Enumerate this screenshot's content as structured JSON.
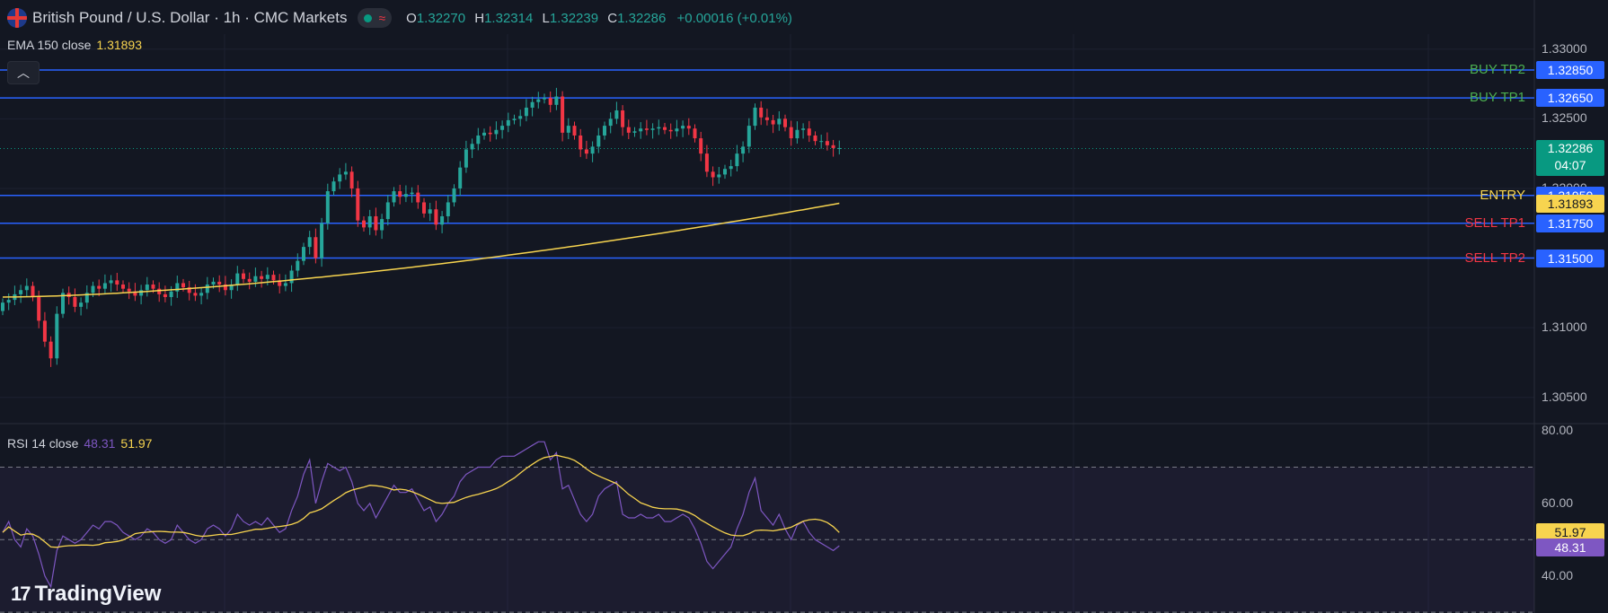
{
  "header": {
    "title": "British Pound / U.S. Dollar · 1h · CMC Markets",
    "flag_icon": "gbp-usd-flag-icon",
    "status_icon": "market-status-icon",
    "wave_icon": "wave-icon",
    "ohlc": {
      "o_label": "O",
      "o": "1.32270",
      "h_label": "H",
      "h": "1.32314",
      "l_label": "L",
      "l": "1.32239",
      "c_label": "C",
      "c": "1.32286",
      "change": "+0.00016 (+0.01%)"
    }
  },
  "ema_legend": {
    "label": "EMA 150 close",
    "value": "1.31893"
  },
  "rsi_legend": {
    "label": "RSI 14 close",
    "value": "48.31",
    "ma_value": "51.97"
  },
  "price_axis": {
    "ticks": [
      "1.33000",
      "1.32500",
      "1.32000",
      "1.31000",
      "1.30500"
    ],
    "current_price": "1.32286",
    "countdown": "04:07"
  },
  "rsi_axis": {
    "ticks": [
      "80.00",
      "60.00",
      "40.00"
    ],
    "rsi_value": "48.31",
    "ma_value": "51.97"
  },
  "levels": [
    {
      "label": "BUY TP2",
      "price": "1.32850",
      "value": 1.3285,
      "color": "#4caf50"
    },
    {
      "label": "BUY TP1",
      "price": "1.32650",
      "value": 1.3265,
      "color": "#4caf50"
    },
    {
      "label": "ENTRY",
      "price": "1.31950",
      "value": 1.3195,
      "color": "#f7d44f"
    },
    {
      "label": "SELL TP1",
      "price": "1.31750",
      "value": 1.3175,
      "color": "#f23645"
    },
    {
      "label": "SELL TP2",
      "price": "1.31500",
      "value": 1.315,
      "color": "#f23645"
    }
  ],
  "ema_tag": "1.31893",
  "colors": {
    "up": "#26a69a",
    "down": "#f23645",
    "ema": "#f7d44f",
    "rsi": "#7e57c2",
    "level_line": "#2962ff",
    "background": "#131722"
  },
  "logo": {
    "mark": "17",
    "text": "TradingView"
  },
  "chart_data": [
    {
      "type": "candlestick",
      "title": "British Pound / U.S. Dollar · 1h · CMC Markets",
      "ylim": [
        1.3035,
        1.3305
      ],
      "y_ticks": [
        1.33,
        1.325,
        1.32,
        1.31,
        1.305
      ],
      "hlines": [
        1.3285,
        1.3265,
        1.3195,
        1.3175,
        1.315
      ],
      "current_price": 1.32286,
      "close": [
        1.3118,
        1.312,
        1.3124,
        1.3127,
        1.313,
        1.3122,
        1.3105,
        1.309,
        1.3078,
        1.311,
        1.3125,
        1.3122,
        1.3115,
        1.3118,
        1.3125,
        1.313,
        1.3128,
        1.3132,
        1.3134,
        1.3131,
        1.3128,
        1.3126,
        1.3123,
        1.3127,
        1.3131,
        1.3128,
        1.3124,
        1.3122,
        1.3126,
        1.3132,
        1.3129,
        1.3125,
        1.3123,
        1.3125,
        1.3131,
        1.3133,
        1.3131,
        1.3127,
        1.3131,
        1.3139,
        1.3135,
        1.3133,
        1.3137,
        1.3135,
        1.3138,
        1.3134,
        1.313,
        1.3132,
        1.3141,
        1.3148,
        1.3158,
        1.3165,
        1.315,
        1.3175,
        1.3198,
        1.3205,
        1.321,
        1.3212,
        1.32,
        1.3177,
        1.3172,
        1.318,
        1.317,
        1.3178,
        1.319,
        1.3198,
        1.3194,
        1.3196,
        1.3197,
        1.319,
        1.3182,
        1.3185,
        1.3174,
        1.318,
        1.319,
        1.32,
        1.3215,
        1.3228,
        1.3232,
        1.3238,
        1.324,
        1.3239,
        1.3242,
        1.3245,
        1.3249,
        1.325,
        1.3252,
        1.3258,
        1.3262,
        1.3264,
        1.3265,
        1.326,
        1.3266,
        1.324,
        1.3245,
        1.3238,
        1.3228,
        1.3225,
        1.323,
        1.3238,
        1.3245,
        1.325,
        1.3256,
        1.3244,
        1.324,
        1.3241,
        1.3243,
        1.3242,
        1.3243,
        1.3244,
        1.3242,
        1.3241,
        1.3243,
        1.3245,
        1.3243,
        1.3236,
        1.3225,
        1.3212,
        1.3208,
        1.321,
        1.3214,
        1.3216,
        1.3225,
        1.323,
        1.3245,
        1.3258,
        1.3251,
        1.3249,
        1.3246,
        1.325,
        1.3244,
        1.3236,
        1.3242,
        1.3243,
        1.3238,
        1.3234,
        1.3234,
        1.3231,
        1.3229,
        1.3229
      ],
      "ema_150": {
        "start": 1.3122,
        "end": 1.31893
      }
    },
    {
      "type": "line",
      "title": "RSI 14 close",
      "ylim": [
        32.5,
        81
      ],
      "y_ticks": [
        80,
        60,
        40
      ],
      "bands": [
        70,
        50,
        30
      ],
      "series": [
        {
          "name": "RSI 14 close",
          "last": 48.31,
          "values": [
            52,
            55,
            50,
            48,
            53,
            51,
            46,
            40,
            37,
            47,
            51,
            50,
            49,
            50,
            52,
            54,
            53,
            55,
            55,
            54,
            52,
            51,
            50,
            51,
            53,
            52,
            50,
            49,
            50,
            54,
            52,
            50,
            49,
            50,
            53,
            54,
            53,
            51,
            53,
            57,
            55,
            54,
            55,
            54,
            56,
            54,
            52,
            53,
            58,
            62,
            68,
            72,
            60,
            66,
            71,
            70,
            69,
            70,
            66,
            60,
            58,
            60,
            56,
            59,
            62,
            65,
            63,
            63,
            64,
            61,
            58,
            59,
            55,
            57,
            60,
            62,
            66,
            68,
            69,
            70,
            70,
            70,
            72,
            73,
            73,
            73,
            74,
            75,
            76,
            77,
            77,
            72,
            74,
            64,
            65,
            61,
            57,
            55,
            57,
            62,
            64,
            65,
            66,
            57,
            56,
            56,
            57,
            56,
            56,
            57,
            55,
            55,
            56,
            57,
            56,
            53,
            49,
            44,
            42,
            44,
            46,
            48,
            53,
            57,
            63,
            67,
            58,
            56,
            54,
            57,
            53,
            50,
            54,
            55,
            52,
            50,
            49,
            48,
            47,
            48.31
          ]
        },
        {
          "name": "RSI-based MA",
          "last": 51.97
        }
      ]
    }
  ]
}
